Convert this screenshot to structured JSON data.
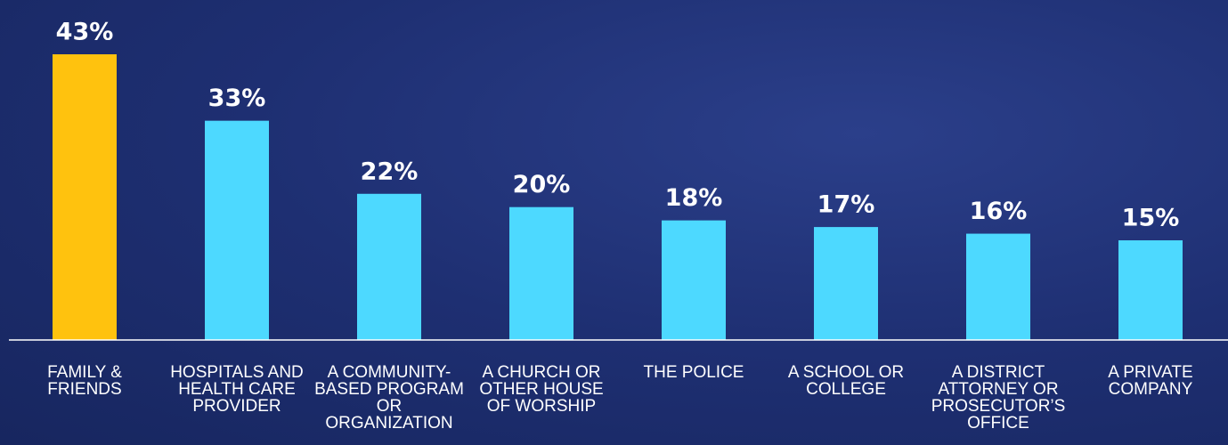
{
  "chart_data": {
    "type": "bar",
    "categories": [
      "FAMILY & FRIENDS",
      "HOSPITALS AND HEALTH CARE PROVIDER",
      "A COMMUNITY-BASED PROGRAM OR ORGANIZATION",
      "A CHURCH OR OTHER HOUSE OF WORSHIP",
      "THE POLICE",
      "A SCHOOL OR COLLEGE",
      "A DISTRICT ATTORNEY OR PROSECUTOR’S OFFICE",
      "A PRIVATE COMPANY"
    ],
    "values": [
      43,
      33,
      22,
      20,
      18,
      17,
      16,
      15
    ],
    "value_labels": [
      "43%",
      "33%",
      "22%",
      "20%",
      "18%",
      "17%",
      "16%",
      "15%"
    ],
    "colors": [
      "#ffc20e",
      "#4dd9ff",
      "#4dd9ff",
      "#4dd9ff",
      "#4dd9ff",
      "#4dd9ff",
      "#4dd9ff",
      "#4dd9ff"
    ]
  }
}
